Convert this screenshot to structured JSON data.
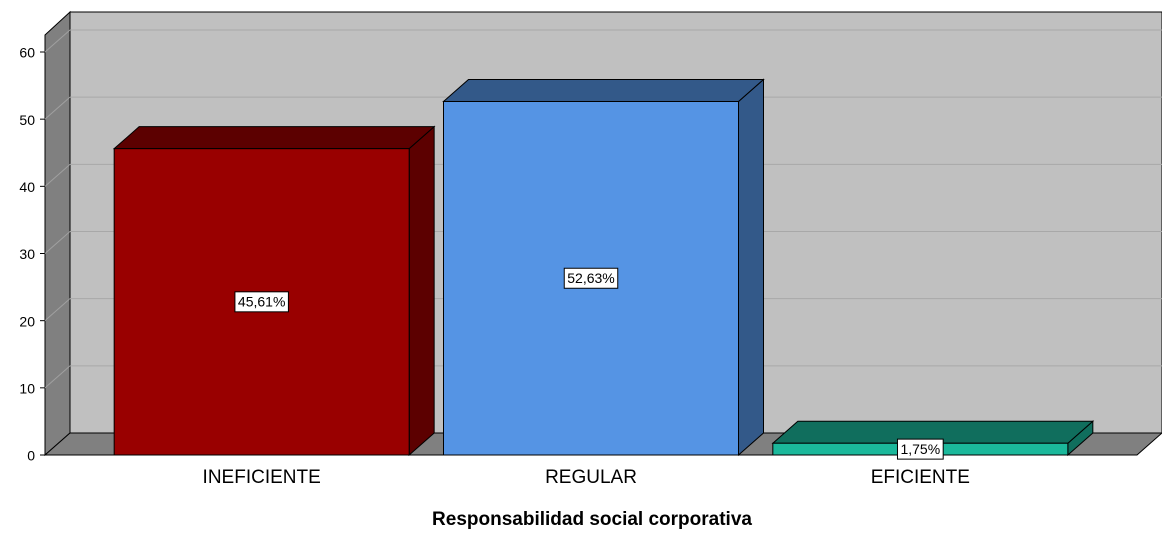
{
  "chart_data": {
    "type": "bar3d",
    "x_label": "Responsabilidad social corporativa",
    "categories": [
      "INEFICIENTE",
      "REGULAR",
      "EFICIENTE"
    ],
    "values": [
      45.61,
      52.63,
      1.75
    ],
    "value_labels": [
      "45,61%",
      "52,63%",
      "1,75%"
    ],
    "colors": [
      "#990000",
      "#5594e4",
      "#1bb89b"
    ],
    "ylim": [
      0,
      60
    ],
    "yticks": [
      0,
      10,
      20,
      30,
      40,
      50,
      60
    ],
    "grid": true
  }
}
